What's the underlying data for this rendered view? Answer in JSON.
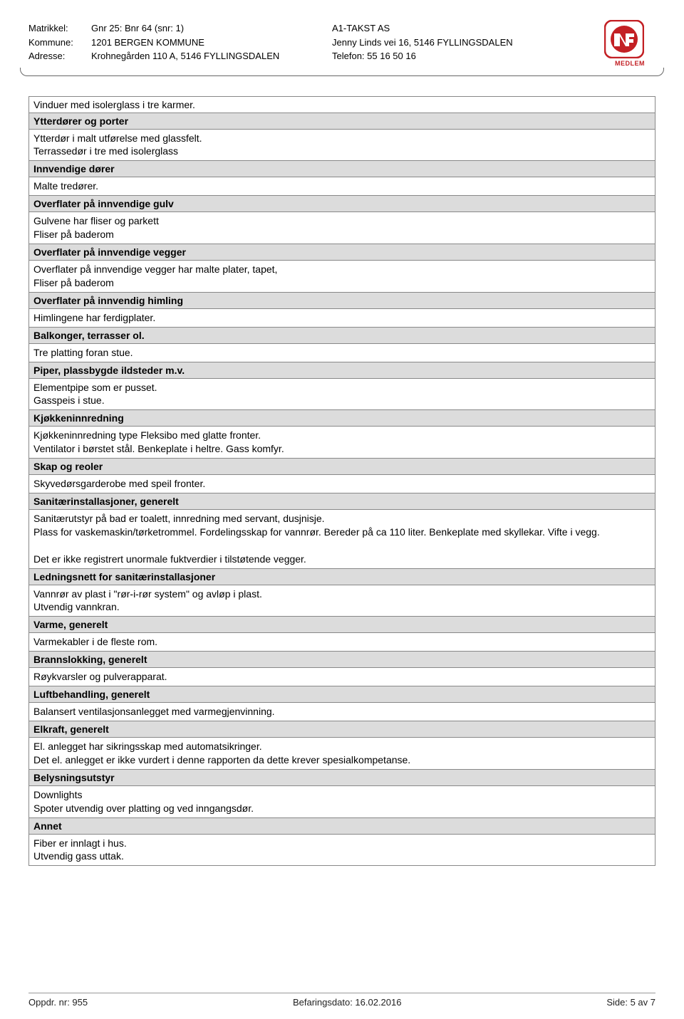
{
  "header": {
    "labels": {
      "matrikkel": "Matrikkel:",
      "kommune": "Kommune:",
      "adresse": "Adresse:"
    },
    "values": {
      "matrikkel": "Gnr 25: Bnr 64 (snr: 1)",
      "kommune": "1201 BERGEN KOMMUNE",
      "adresse": "Krohnegården 110 A, 5146 FYLLINGSDALEN"
    },
    "company": {
      "name": "A1-TAKST AS",
      "address": "Jenny Linds vei 16, 5146 FYLLINGSDALEN",
      "phone": "Telefon: 55 16 50 16"
    },
    "logo_text": "MEDLEM"
  },
  "intro": "Vinduer med isolerglass i tre karmer.",
  "sections": [
    {
      "title": "Ytterdører og porter",
      "content": "Ytterdør i malt utførelse med glassfelt.\nTerrassedør i tre med isolerglass"
    },
    {
      "title": "Innvendige dører",
      "content": "Malte tredører."
    },
    {
      "title": "Overflater på innvendige gulv",
      "content": "Gulvene har fliser og  parkett\nFliser på baderom"
    },
    {
      "title": "Overflater på innvendige vegger",
      "content": "Overflater på innvendige vegger har malte plater, tapet,\nFliser på baderom"
    },
    {
      "title": "Overflater på innvendig himling",
      "content": "Himlingene har ferdigplater."
    },
    {
      "title": "Balkonger, terrasser ol.",
      "content": "Tre platting foran stue."
    },
    {
      "title": "Piper, plassbygde ildsteder m.v.",
      "content": "Elementpipe som er pusset.\nGasspeis i stue."
    },
    {
      "title": "Kjøkkeninnredning",
      "content": "Kjøkkeninnredning type Fleksibo med  glatte fronter.\nVentilator i børstet stål. Benkeplate i heltre. Gass komfyr."
    },
    {
      "title": "Skap og reoler",
      "content": "Skyvedørsgarderobe  med speil fronter."
    },
    {
      "title": "Sanitærinstallasjoner, generelt",
      "content": "Sanitærutstyr på bad  er toalett, innredning med servant, dusjnisje.\nPlass for vaskemaskin/tørketrommel. Fordelingsskap for vannrør. Bereder på ca 110 liter. Benkeplate med skyllekar. Vifte i vegg.\n\nDet er ikke registrert unormale fuktverdier i tilstøtende vegger."
    },
    {
      "title": "Ledningsnett for sanitærinstallasjoner",
      "content": "Vannrør av plast i \"rør-i-rør system\" og avløp i plast.\nUtvendig vannkran."
    },
    {
      "title": "Varme, generelt",
      "content": "Varmekabler i de fleste rom."
    },
    {
      "title": "Brannslokking, generelt",
      "content": "Røykvarsler og pulverapparat."
    },
    {
      "title": "Luftbehandling, generelt",
      "content": "Balansert ventilasjonsanlegget med varmegjenvinning."
    },
    {
      "title": "Elkraft, generelt",
      "content": "El. anlegget har sikringsskap med automatsikringer.\nDet el. anlegget er ikke vurdert i denne rapporten da dette krever spesialkompetanse."
    },
    {
      "title": "Belysningsutstyr",
      "content": "Downlights\nSpoter utvendig over platting og ved inngangsdør."
    },
    {
      "title": "Annet",
      "content": "Fiber er innlagt i hus.\nUtvendig gass uttak."
    }
  ],
  "footer": {
    "left": "Oppdr. nr: 955",
    "center": "Befaringsdato: 16.02.2016",
    "right": "Side: 5 av 7"
  },
  "colors": {
    "section_bg": "#dcdcdc",
    "border": "#888888",
    "logo_red": "#c32024",
    "logo_blue": "#1d3a7a"
  }
}
